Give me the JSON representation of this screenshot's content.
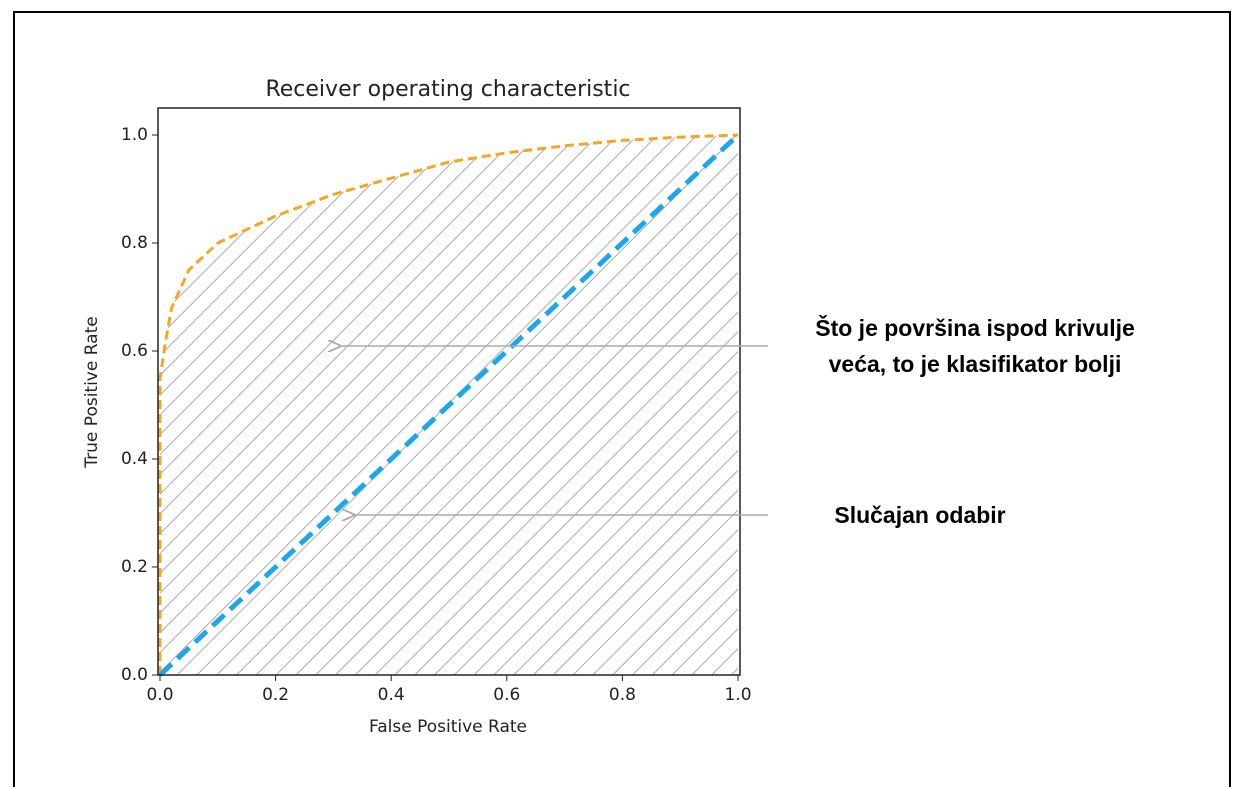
{
  "chart_data": {
    "type": "line",
    "title": "Receiver operating characteristic",
    "xlabel": "False Positive Rate",
    "ylabel": "True Positive Rate",
    "xlim": [
      0,
      1
    ],
    "ylim": [
      0,
      1.05
    ],
    "xticks": [
      {
        "value": 0,
        "label": "0.0"
      },
      {
        "value": 0.2,
        "label": "0.2"
      },
      {
        "value": 0.4,
        "label": "0.4"
      },
      {
        "value": 0.6,
        "label": "0.6"
      },
      {
        "value": 0.8,
        "label": "0.8"
      },
      {
        "value": 1,
        "label": "1.0"
      }
    ],
    "yticks": [
      {
        "value": 0,
        "label": "0.0"
      },
      {
        "value": 0.2,
        "label": "0.2"
      },
      {
        "value": 0.4,
        "label": "0.4"
      },
      {
        "value": 0.6,
        "label": "0.6"
      },
      {
        "value": 0.8,
        "label": "0.8"
      },
      {
        "value": 1,
        "label": "1.0"
      }
    ],
    "series": [
      {
        "color": "#f5a623",
        "x": [
          0,
          0,
          0.01,
          0.02,
          0.05,
          0.1,
          0.2,
          0.3,
          0.4,
          0.5,
          0.6,
          0.7,
          0.8,
          0.9,
          1.0
        ],
        "values": [
          0,
          0.55,
          0.62,
          0.68,
          0.75,
          0.8,
          0.85,
          0.89,
          0.92,
          0.95,
          0.967,
          0.98,
          0.99,
          0.996,
          1.0
        ]
      },
      {
        "color": "#1ea7e8",
        "x": [
          0,
          1
        ],
        "values": [
          0,
          1
        ]
      }
    ],
    "annotations": [
      [
        "Što je površina ispod krivulje",
        "veća, to je klasifikator bolji"
      ],
      [
        "Slučajan odabir"
      ]
    ]
  }
}
